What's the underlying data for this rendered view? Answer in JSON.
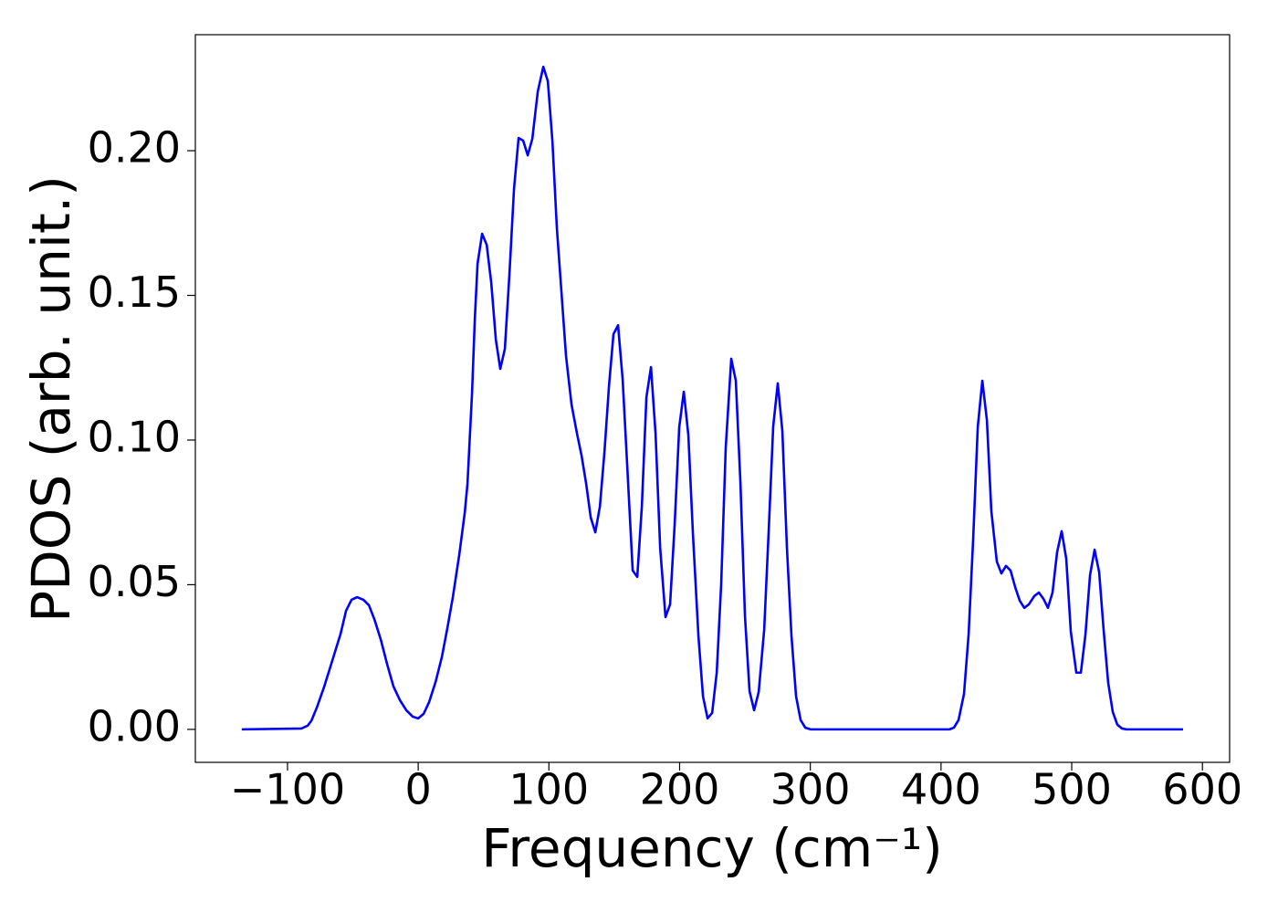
{
  "chart_data": {
    "type": "line",
    "x_label": "Frequency (cm⁻¹)",
    "y_label": "PDOS (arb. unit.)",
    "color": "#0000ff",
    "x": [
      -135,
      -89.4,
      -84.5,
      -81.7,
      -77.5,
      -71.9,
      -64.2,
      -59.4,
      -55.2,
      -51,
      -46.8,
      -41.9,
      -37.7,
      -33.5,
      -28.6,
      -23.7,
      -18.9,
      -14,
      -9.1,
      -4.2,
      0,
      4.2,
      8.4,
      13.3,
      18.2,
      22.3,
      26.5,
      31.4,
      35.6,
      37.7,
      41.2,
      43.3,
      45.4,
      48.9,
      52.4,
      55.9,
      59.4,
      62.8,
      66.3,
      69.8,
      73.3,
      76.8,
      80.3,
      83.8,
      87.3,
      91.5,
      95.7,
      99.2,
      102.7,
      106.1,
      109.6,
      113.1,
      117.3,
      121.5,
      125,
      128.5,
      132,
      135.5,
      139,
      142.5,
      146,
      149.4,
      152.9,
      156.4,
      159.9,
      164.1,
      167.6,
      171.1,
      174.6,
      178.1,
      181.6,
      185.1,
      189.2,
      192.7,
      196.2,
      199.7,
      203.2,
      206.7,
      210.2,
      214.4,
      217.9,
      221.4,
      224.9,
      228.4,
      231.8,
      235.3,
      239.5,
      243,
      246.5,
      250,
      253.5,
      257,
      260.5,
      264.7,
      268.2,
      271.6,
      275.1,
      278.6,
      282.1,
      285.6,
      289.1,
      292.6,
      296.1,
      300.3,
      406.4,
      409.9,
      413.4,
      417.6,
      421.1,
      424.6,
      428.1,
      431.6,
      435.1,
      438.5,
      442.7,
      446.2,
      449.7,
      453.2,
      456.7,
      460.2,
      463.7,
      467.2,
      471.4,
      474.9,
      478.4,
      481.8,
      485.3,
      488.8,
      492.3,
      495.8,
      499.3,
      503.5,
      507,
      510.5,
      514,
      517.5,
      521,
      524.4,
      527.9,
      531.4,
      534.9,
      538.4,
      541.9,
      585.2
    ],
    "values": [
      0,
      0.0003,
      0.0013,
      0.003,
      0.0076,
      0.0148,
      0.026,
      0.033,
      0.041,
      0.0448,
      0.0457,
      0.0448,
      0.0429,
      0.038,
      0.031,
      0.0224,
      0.0148,
      0.0101,
      0.0066,
      0.0044,
      0.0038,
      0.0054,
      0.0095,
      0.0164,
      0.0252,
      0.035,
      0.0457,
      0.0603,
      0.0748,
      0.0849,
      0.1164,
      0.1416,
      0.1609,
      0.1713,
      0.1675,
      0.1543,
      0.1347,
      0.1246,
      0.1315,
      0.1574,
      0.1868,
      0.2044,
      0.2035,
      0.1984,
      0.2041,
      0.2205,
      0.229,
      0.224,
      0.2032,
      0.1732,
      0.1511,
      0.129,
      0.1123,
      0.1022,
      0.0946,
      0.0849,
      0.0732,
      0.0681,
      0.077,
      0.0959,
      0.1189,
      0.1366,
      0.1397,
      0.1211,
      0.0912,
      0.0549,
      0.0527,
      0.077,
      0.1148,
      0.1252,
      0.1022,
      0.0628,
      0.0388,
      0.0432,
      0.0707,
      0.1044,
      0.1167,
      0.1016,
      0.0675,
      0.0322,
      0.0114,
      0.0038,
      0.0057,
      0.0196,
      0.0502,
      0.0975,
      0.1281,
      0.1205,
      0.0855,
      0.0391,
      0.0132,
      0.0066,
      0.0129,
      0.0344,
      0.0691,
      0.1047,
      0.1196,
      0.1032,
      0.0628,
      0.0322,
      0.0114,
      0.0032,
      0.0006,
      0,
      0,
      0.0006,
      0.0032,
      0.0123,
      0.0328,
      0.0659,
      0.1044,
      0.1205,
      0.1069,
      0.0754,
      0.058,
      0.0539,
      0.0565,
      0.0549,
      0.0492,
      0.0445,
      0.042,
      0.0432,
      0.0461,
      0.0473,
      0.0451,
      0.042,
      0.0473,
      0.0612,
      0.0685,
      0.059,
      0.0338,
      0.0196,
      0.0196,
      0.0328,
      0.0533,
      0.0621,
      0.0543,
      0.0344,
      0.0161,
      0.006,
      0.0016,
      0.0003,
      0,
      0
    ],
    "xlim": [
      -170.5,
      620.8
    ],
    "ylim": [
      -0.0114,
      0.2401
    ],
    "xticks": [
      {
        "value": -100,
        "label": "−100"
      },
      0,
      100,
      200,
      300,
      400,
      500,
      600
    ],
    "yticks": [
      {
        "value": 0,
        "label": "0.00"
      },
      {
        "value": 0.05,
        "label": "0.05"
      },
      {
        "value": 0.1,
        "label": "0.10"
      },
      {
        "value": 0.15,
        "label": "0.15"
      },
      {
        "value": 0.2,
        "label": "0.20"
      }
    ],
    "grid": false
  }
}
